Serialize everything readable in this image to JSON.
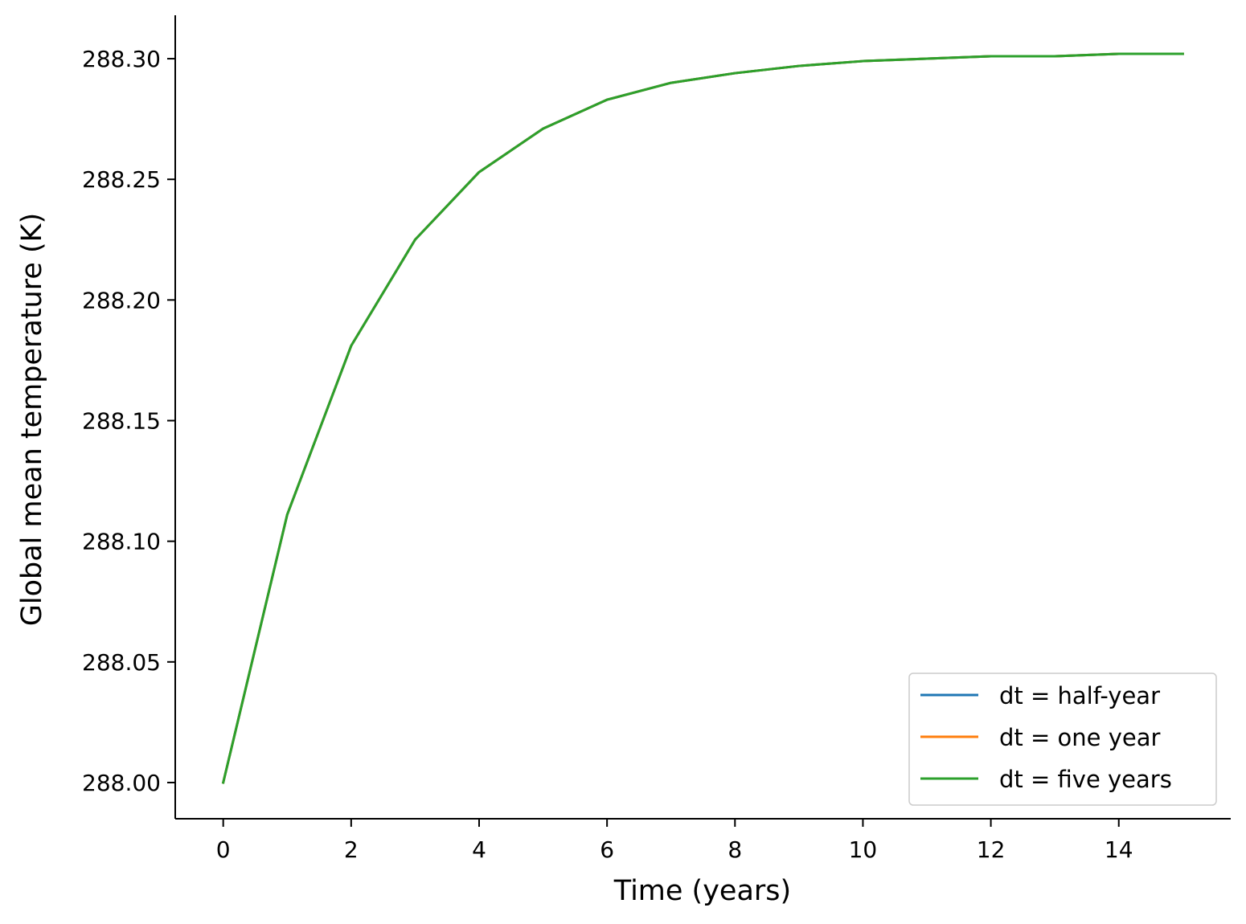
{
  "chart_data": {
    "type": "line",
    "title": "",
    "xlabel": "Time (years)",
    "ylabel": "Global mean temperature (K)",
    "xlim": [
      -0.75,
      15.75
    ],
    "ylim": [
      287.985,
      288.318
    ],
    "x_ticks": [
      0,
      2,
      4,
      6,
      8,
      10,
      12,
      14
    ],
    "x_tick_labels": [
      "0",
      "2",
      "4",
      "6",
      "8",
      "10",
      "12",
      "14"
    ],
    "y_ticks": [
      288.0,
      288.05,
      288.1,
      288.15,
      288.2,
      288.25,
      288.3
    ],
    "y_tick_labels": [
      "288.00",
      "288.05",
      "288.10",
      "288.15",
      "288.20",
      "288.25",
      "288.30"
    ],
    "grid": false,
    "legend_position": "lower-right",
    "series": [
      {
        "name": "dt = half-year",
        "color": "#1f77b4",
        "x": [
          0,
          1,
          2,
          3,
          4,
          5,
          6,
          7,
          8,
          9,
          10,
          11,
          12,
          13,
          14,
          15
        ],
        "y": [
          288.0,
          288.111,
          288.181,
          288.225,
          288.253,
          288.271,
          288.283,
          288.29,
          288.294,
          288.297,
          288.299,
          288.3,
          288.301,
          288.301,
          288.302,
          288.302
        ]
      },
      {
        "name": "dt = one year",
        "color": "#ff7f0e",
        "x": [
          0,
          1,
          2,
          3,
          4,
          5,
          6,
          7,
          8,
          9,
          10,
          11,
          12,
          13,
          14,
          15
        ],
        "y": [
          288.0,
          288.111,
          288.181,
          288.225,
          288.253,
          288.271,
          288.283,
          288.29,
          288.294,
          288.297,
          288.299,
          288.3,
          288.301,
          288.301,
          288.302,
          288.302
        ]
      },
      {
        "name": "dt = five years",
        "color": "#2ca02c",
        "x": [
          0,
          1,
          2,
          3,
          4,
          5,
          6,
          7,
          8,
          9,
          10,
          11,
          12,
          13,
          14,
          15
        ],
        "y": [
          288.0,
          288.111,
          288.181,
          288.225,
          288.253,
          288.271,
          288.283,
          288.29,
          288.294,
          288.297,
          288.299,
          288.3,
          288.301,
          288.301,
          288.302,
          288.302
        ]
      }
    ]
  }
}
